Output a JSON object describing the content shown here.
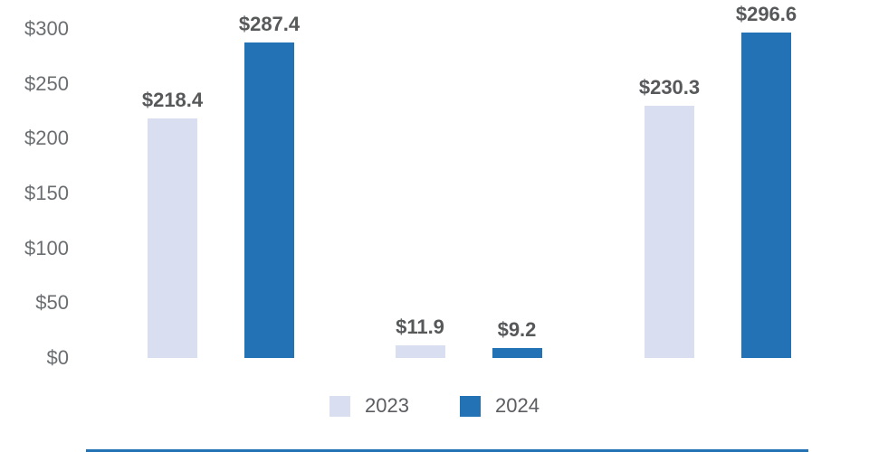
{
  "chart_data": {
    "type": "bar",
    "title": "",
    "xlabel": "",
    "ylabel": "",
    "categories": [
      "",
      "",
      ""
    ],
    "series": [
      {
        "name": "2023",
        "color": "#d9def0",
        "values": [
          218.4,
          11.9,
          230.3
        ],
        "labels": [
          "$218.4",
          "$11.9",
          "$230.3"
        ]
      },
      {
        "name": "2024",
        "color": "#2272b5",
        "values": [
          287.4,
          9.2,
          296.6
        ],
        "labels": [
          "$287.4",
          "$9.2",
          "$296.6"
        ]
      }
    ],
    "y_ticks": [
      "$300",
      "$250",
      "$200",
      "$150",
      "$100",
      "$50",
      "$0"
    ],
    "y_tick_values": [
      300,
      250,
      200,
      150,
      100,
      50,
      0
    ],
    "ylim": [
      0,
      300
    ],
    "value_prefix": "$",
    "grid": false,
    "axis_lines": false,
    "legend_position": "bottom"
  },
  "colors": {
    "background": "#ffffff",
    "series_2023": "#d9def0",
    "series_2024": "#2272b5",
    "tick_label": "#6b6e71",
    "data_label": "#565859",
    "legend_label": "#5b5d60",
    "bottom_accent_line": "#2272b5"
  }
}
